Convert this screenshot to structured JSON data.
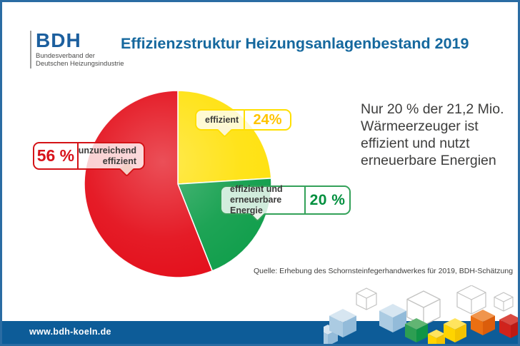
{
  "logo": {
    "acronym": "BDH",
    "line1": "Bundesverband der",
    "line2": "Deutschen Heizungsindustrie"
  },
  "title": "Effizienzstruktur Heizungsanlagenbestand 2019",
  "chart_data": {
    "type": "pie",
    "title": "Effizienzstruktur Heizungsanlagenbestand 2019",
    "unit": "percent",
    "categories": [
      "effizient",
      "effizient und erneuerbare Energie",
      "unzureichend effizient"
    ],
    "values": [
      24,
      20,
      56
    ],
    "colors": [
      "#ffe10a",
      "#0d9d49",
      "#e30b17"
    ],
    "start_angle_deg": 0,
    "direction": "clockwise",
    "annotation": "Nur 20 % der 21,2 Mio. Wärmeerzeuger ist effizient und nutzt erneuerbare Energien",
    "source": "Quelle: Erhebung des Schornsteinfegerhandwerkes für 2019, BDH-Schätzung"
  },
  "callouts": {
    "red": {
      "pct": "56 %",
      "line1": "unzureichend",
      "line2": "effizient"
    },
    "yellow": {
      "pct": "24%",
      "label": "effizient"
    },
    "green": {
      "pct": "20 %",
      "line1": "effizient und",
      "line2": "erneuerbare Energie"
    }
  },
  "headline": {
    "line1": "Nur 20 % der 21,2 Mio.",
    "line2": "Wärmeerzeuger ist",
    "line3": "effizient und nutzt",
    "line4": "erneuerbare Energien"
  },
  "source": "Quelle: Erhebung des Schornsteinfegerhandwerkes für 2019, BDH-Schätzung",
  "footer": {
    "url": "www.bdh-koeln.de"
  },
  "colors": {
    "accent_blue": "#15689e",
    "bar_blue": "#0d5c98",
    "red": "#e30b17",
    "yellow": "#ffe10a",
    "green": "#0d9d49"
  }
}
